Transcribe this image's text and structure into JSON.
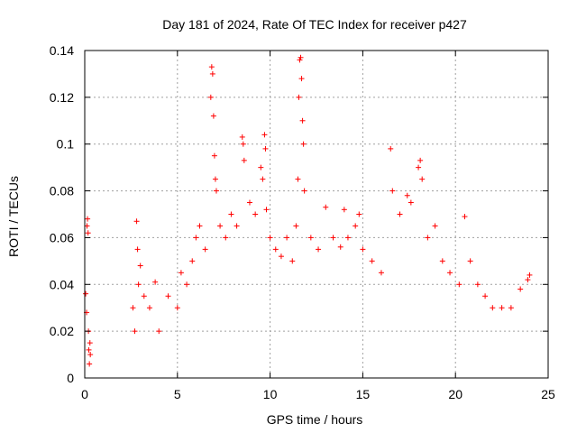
{
  "chart_data": {
    "type": "scatter",
    "title": "Day 181 of 2024, Rate Of TEC Index for receiver p427",
    "xlabel": "GPS time / hours",
    "ylabel": "ROTI / TECUs",
    "xlim": [
      0,
      25
    ],
    "ylim": [
      0,
      0.14
    ],
    "x_ticks": [
      0,
      5,
      10,
      15,
      20,
      25
    ],
    "y_ticks": [
      0,
      0.02,
      0.04,
      0.06,
      0.08,
      0.1,
      0.12,
      0.14
    ],
    "x_tick_labels": [
      "0",
      "5",
      "10",
      "15",
      "20",
      "25"
    ],
    "y_tick_labels": [
      "0",
      "0.02",
      "0.04",
      "0.06",
      "0.08",
      "0.1",
      "0.12",
      "0.14"
    ],
    "grid": true,
    "marker": "plus",
    "color": "#ff0000",
    "series": [
      {
        "name": "ROTI",
        "points": [
          [
            0.05,
            0.036
          ],
          [
            0.1,
            0.028
          ],
          [
            0.12,
            0.065
          ],
          [
            0.15,
            0.068
          ],
          [
            0.18,
            0.062
          ],
          [
            0.2,
            0.02
          ],
          [
            0.22,
            0.012
          ],
          [
            0.25,
            0.006
          ],
          [
            0.28,
            0.015
          ],
          [
            0.3,
            0.01
          ],
          [
            2.6,
            0.03
          ],
          [
            2.7,
            0.02
          ],
          [
            2.8,
            0.067
          ],
          [
            2.85,
            0.055
          ],
          [
            2.9,
            0.04
          ],
          [
            3.0,
            0.048
          ],
          [
            3.2,
            0.035
          ],
          [
            3.5,
            0.03
          ],
          [
            3.8,
            0.041
          ],
          [
            4.0,
            0.02
          ],
          [
            4.5,
            0.035
          ],
          [
            5.0,
            0.03
          ],
          [
            5.2,
            0.045
          ],
          [
            5.5,
            0.04
          ],
          [
            5.8,
            0.05
          ],
          [
            6.0,
            0.06
          ],
          [
            6.2,
            0.065
          ],
          [
            6.5,
            0.055
          ],
          [
            6.8,
            0.12
          ],
          [
            6.85,
            0.133
          ],
          [
            6.9,
            0.13
          ],
          [
            6.95,
            0.112
          ],
          [
            7.0,
            0.095
          ],
          [
            7.05,
            0.085
          ],
          [
            7.1,
            0.08
          ],
          [
            7.3,
            0.065
          ],
          [
            7.6,
            0.06
          ],
          [
            7.9,
            0.07
          ],
          [
            8.2,
            0.065
          ],
          [
            8.5,
            0.103
          ],
          [
            8.55,
            0.1
          ],
          [
            8.6,
            0.093
          ],
          [
            8.9,
            0.075
          ],
          [
            9.2,
            0.07
          ],
          [
            9.5,
            0.09
          ],
          [
            9.6,
            0.085
          ],
          [
            9.7,
            0.104
          ],
          [
            9.75,
            0.098
          ],
          [
            9.8,
            0.072
          ],
          [
            10.0,
            0.06
          ],
          [
            10.3,
            0.055
          ],
          [
            10.6,
            0.052
          ],
          [
            10.9,
            0.06
          ],
          [
            11.2,
            0.05
          ],
          [
            11.4,
            0.065
          ],
          [
            11.5,
            0.085
          ],
          [
            11.55,
            0.12
          ],
          [
            11.6,
            0.136
          ],
          [
            11.65,
            0.137
          ],
          [
            11.7,
            0.128
          ],
          [
            11.75,
            0.11
          ],
          [
            11.8,
            0.1
          ],
          [
            11.85,
            0.08
          ],
          [
            12.2,
            0.06
          ],
          [
            12.6,
            0.055
          ],
          [
            13.0,
            0.073
          ],
          [
            13.4,
            0.06
          ],
          [
            13.8,
            0.056
          ],
          [
            14.0,
            0.072
          ],
          [
            14.2,
            0.06
          ],
          [
            14.6,
            0.065
          ],
          [
            14.8,
            0.07
          ],
          [
            15.0,
            0.055
          ],
          [
            15.5,
            0.05
          ],
          [
            16.0,
            0.045
          ],
          [
            16.5,
            0.098
          ],
          [
            16.6,
            0.08
          ],
          [
            17.0,
            0.07
          ],
          [
            17.4,
            0.078
          ],
          [
            17.6,
            0.075
          ],
          [
            18.0,
            0.09
          ],
          [
            18.1,
            0.093
          ],
          [
            18.2,
            0.085
          ],
          [
            18.5,
            0.06
          ],
          [
            18.9,
            0.065
          ],
          [
            19.3,
            0.05
          ],
          [
            19.7,
            0.045
          ],
          [
            20.2,
            0.04
          ],
          [
            20.5,
            0.069
          ],
          [
            20.8,
            0.05
          ],
          [
            21.2,
            0.04
          ],
          [
            21.6,
            0.035
          ],
          [
            22.0,
            0.03
          ],
          [
            22.5,
            0.03
          ],
          [
            23.0,
            0.03
          ],
          [
            23.5,
            0.038
          ],
          [
            23.9,
            0.042
          ],
          [
            24.0,
            0.044
          ]
        ]
      }
    ]
  }
}
